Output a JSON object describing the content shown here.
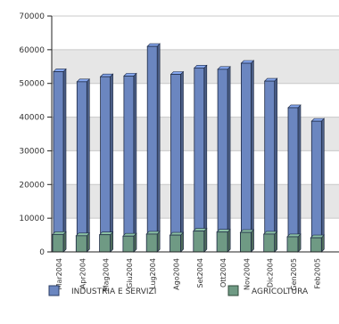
{
  "chart_data": {
    "type": "bar",
    "categories": [
      "Mar2004",
      "Apr2004",
      "Mag2004",
      "Giu2004",
      "Lug2004",
      "Ago2004",
      "Set2004",
      "Ott2004",
      "Nov2004",
      "Dic2004",
      "Gen2005",
      "Feb2005"
    ],
    "series": [
      {
        "name": "INDUSTRIA E SERVIZI",
        "values": [
          53500,
          50500,
          52000,
          52200,
          61000,
          52700,
          54600,
          54200,
          56000,
          50700,
          42800,
          38800
        ]
      },
      {
        "name": "AGRICOLTURA",
        "values": [
          5200,
          4800,
          5100,
          4700,
          5300,
          5000,
          6200,
          5900,
          5800,
          5300,
          4500,
          4200
        ]
      }
    ],
    "yticks": [
      "0",
      "10000",
      "20000",
      "30000",
      "40000",
      "50000",
      "60000",
      "70000"
    ],
    "ylim": [
      0,
      70000
    ],
    "grid": true,
    "legend": "bottom",
    "colors": {
      "industria": "#6b86c0",
      "agricoltura": "#6f9a84",
      "grid_band": "#e6e6e6"
    }
  }
}
